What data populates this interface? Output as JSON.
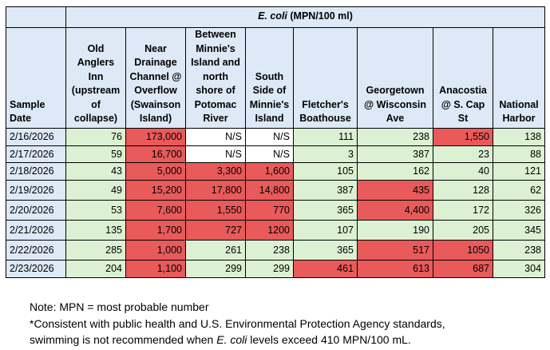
{
  "colors": {
    "header": "#dde9f6",
    "safe": "#dcf1d3",
    "exceeds": "#e95a5a",
    "not_sampled": "#ffffff"
  },
  "table": {
    "group_header_italic": "E. coli",
    "group_header_rest": " (MPN/100 ml)",
    "columns": [
      "Sample Date",
      "Old Anglers Inn (upstream of collapse)",
      "Near Drainage Channel @ Overflow (Swainson Island)",
      "Between Minnie's Island and north shore of Potomac River",
      "South Side of Minnie's Island",
      "Fletcher's Boathouse",
      "Georgetown @ Wisconsin Ave",
      "Anacostia @ S. Cap St",
      "National Harbor"
    ],
    "rows": [
      {
        "date": "2/16/2026",
        "values": [
          "76",
          "173,000",
          "N/S",
          "N/S",
          "111",
          "238",
          "1,550",
          "138"
        ],
        "status": [
          "g",
          "r",
          "n",
          "n",
          "g",
          "g",
          "r",
          "g"
        ]
      },
      {
        "date": "2/17/2026",
        "values": [
          "59",
          "16,700",
          "N/S",
          "N/S",
          "3",
          "387",
          "23",
          "88"
        ],
        "status": [
          "g",
          "r",
          "n",
          "n",
          "g",
          "g",
          "g",
          "g"
        ]
      },
      {
        "date": "2/18/2026",
        "values": [
          "43",
          "5,000",
          "3,300",
          "1,600",
          "105",
          "162",
          "40",
          "121"
        ],
        "status": [
          "g",
          "r",
          "r",
          "r",
          "g",
          "g",
          "g",
          "g"
        ]
      },
      {
        "date": "2/19/2026",
        "values": [
          "49",
          "15,200",
          "17,800",
          "14,800",
          "387",
          "435",
          "128",
          "62"
        ],
        "status": [
          "g",
          "r",
          "r",
          "r",
          "g",
          "r",
          "g",
          "g"
        ]
      },
      {
        "date": "2/20/2026",
        "values": [
          "53",
          "7,600",
          "1,550",
          "770",
          "365",
          "4,400",
          "172",
          "326"
        ],
        "status": [
          "g",
          "r",
          "r",
          "r",
          "g",
          "r",
          "g",
          "g"
        ]
      },
      {
        "date": "2/21/2026",
        "values": [
          "135",
          "1,700",
          "727",
          "1200",
          "107",
          "190",
          "205",
          "345"
        ],
        "status": [
          "g",
          "r",
          "r",
          "r",
          "g",
          "g",
          "g",
          "g"
        ]
      },
      {
        "date": "2/22/2026",
        "values": [
          "285",
          "1,000",
          "261",
          "238",
          "365",
          "517",
          "1050",
          "238"
        ],
        "status": [
          "g",
          "r",
          "g",
          "g",
          "g",
          "r",
          "r",
          "g"
        ]
      },
      {
        "date": "2/23/2026",
        "values": [
          "204",
          "1,100",
          "299",
          "299",
          "461",
          "613",
          "687",
          "304"
        ],
        "status": [
          "g",
          "r",
          "g",
          "g",
          "r",
          "r",
          "r",
          "g"
        ]
      }
    ]
  },
  "notes": {
    "line1": "Note: MPN = most probable number",
    "line2": "*Consistent with public health and U.S. Environmental Protection Agency standards,",
    "line3_a": "swimming is not recommended when ",
    "line3_italic": "E. coli",
    "line3_b": " levels exceed 410 MPN/100 mL."
  }
}
